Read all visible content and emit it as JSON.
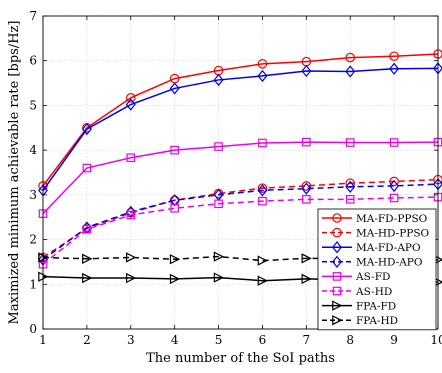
{
  "chart_data": {
    "type": "line",
    "xlabel": "The number of the SoI paths",
    "ylabel": "Maximized minimum achievable rate [bps/Hz]",
    "xlim": [
      1,
      10
    ],
    "ylim": [
      0,
      7
    ],
    "xticks": [
      1,
      2,
      3,
      4,
      5,
      6,
      7,
      8,
      9,
      10
    ],
    "yticks": [
      0,
      1,
      2,
      3,
      4,
      5,
      6,
      7
    ],
    "grid": true,
    "legend_position": "bottom-right",
    "x": [
      1,
      2,
      3,
      4,
      5,
      6,
      7,
      8,
      9,
      10
    ],
    "series": [
      {
        "name": "MA-FD-PPSO",
        "color": "#ff0000",
        "dash": "solid",
        "marker": "circle",
        "values": [
          3.2,
          4.5,
          5.17,
          5.6,
          5.78,
          5.93,
          5.98,
          6.07,
          6.1,
          6.15
        ]
      },
      {
        "name": "MA-HD-PPSO",
        "color": "#ff0000",
        "dash": "dashed",
        "marker": "circle",
        "values": [
          1.6,
          2.25,
          2.6,
          2.88,
          3.03,
          3.15,
          3.2,
          3.26,
          3.3,
          3.34
        ]
      },
      {
        "name": "MA-FD-APO",
        "color": "#0000ee",
        "dash": "solid",
        "marker": "diamond",
        "values": [
          3.1,
          4.47,
          5.02,
          5.38,
          5.57,
          5.66,
          5.77,
          5.76,
          5.82,
          5.83
        ]
      },
      {
        "name": "MA-HD-APO",
        "color": "#0000ee",
        "dash": "dashed",
        "marker": "diamond",
        "values": [
          1.55,
          2.27,
          2.62,
          2.88,
          3.0,
          3.1,
          3.14,
          3.18,
          3.2,
          3.24
        ]
      },
      {
        "name": "AS-FD",
        "color": "#ee00ee",
        "dash": "solid",
        "marker": "square",
        "values": [
          2.58,
          3.6,
          3.83,
          4.0,
          4.08,
          4.16,
          4.18,
          4.17,
          4.17,
          4.18
        ]
      },
      {
        "name": "AS-HD",
        "color": "#ee00ee",
        "dash": "dashed",
        "marker": "square",
        "values": [
          1.45,
          2.23,
          2.55,
          2.7,
          2.8,
          2.86,
          2.9,
          2.9,
          2.93,
          2.95
        ]
      },
      {
        "name": "FPA-FD",
        "color": "#000000",
        "dash": "solid",
        "marker": "triangle-right",
        "values": [
          1.17,
          1.14,
          1.14,
          1.12,
          1.15,
          1.08,
          1.12,
          1.1,
          1.06,
          1.05
        ]
      },
      {
        "name": "FPA-HD",
        "color": "#000000",
        "dash": "dashed",
        "marker": "triangle-right",
        "values": [
          1.6,
          1.57,
          1.6,
          1.56,
          1.62,
          1.53,
          1.58,
          1.57,
          1.55,
          1.55
        ]
      }
    ]
  }
}
